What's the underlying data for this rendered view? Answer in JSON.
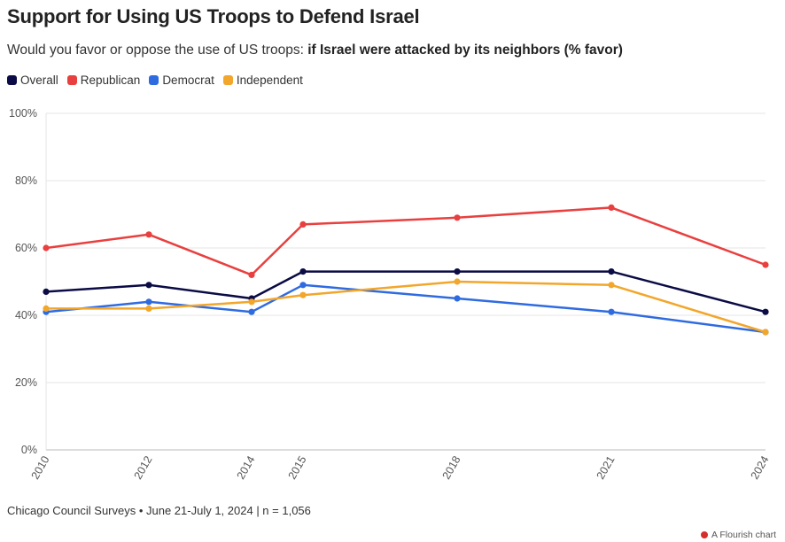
{
  "chart_data": {
    "type": "line",
    "title": "Support for Using US Troops to Defend Israel",
    "subtitle_prefix": "Would you favor or oppose the use of US troops:",
    "subtitle_bold": "if Israel were attacked by its neighbors (% favor)",
    "x": [
      2010,
      2012,
      2014,
      2015,
      2018,
      2021,
      2024
    ],
    "x_tick_labels": [
      "2010",
      "2012",
      "2014",
      "2015",
      "2018",
      "2021",
      "2024"
    ],
    "y_ticks": [
      0,
      20,
      40,
      60,
      80,
      100
    ],
    "y_tick_labels": [
      "0%",
      "20%",
      "40%",
      "60%",
      "80%",
      "100%"
    ],
    "ylim": [
      0,
      100
    ],
    "grid": "horizontal",
    "legend_position": "top-left",
    "series": [
      {
        "name": "Overall",
        "color": "#0b0b45",
        "values": [
          47,
          49,
          45,
          53,
          53,
          53,
          41
        ]
      },
      {
        "name": "Republican",
        "color": "#e8403f",
        "values": [
          60,
          64,
          52,
          67,
          69,
          72,
          55
        ]
      },
      {
        "name": "Democrat",
        "color": "#2f6be0",
        "values": [
          41,
          44,
          41,
          49,
          45,
          41,
          35
        ]
      },
      {
        "name": "Independent",
        "color": "#f2a62b",
        "values": [
          42,
          42,
          44,
          46,
          50,
          49,
          35
        ]
      }
    ]
  },
  "footer": {
    "source": "Chicago Council Surveys • June 21-July 1, 2024 | n = 1,056",
    "credit": "A Flourish chart"
  }
}
